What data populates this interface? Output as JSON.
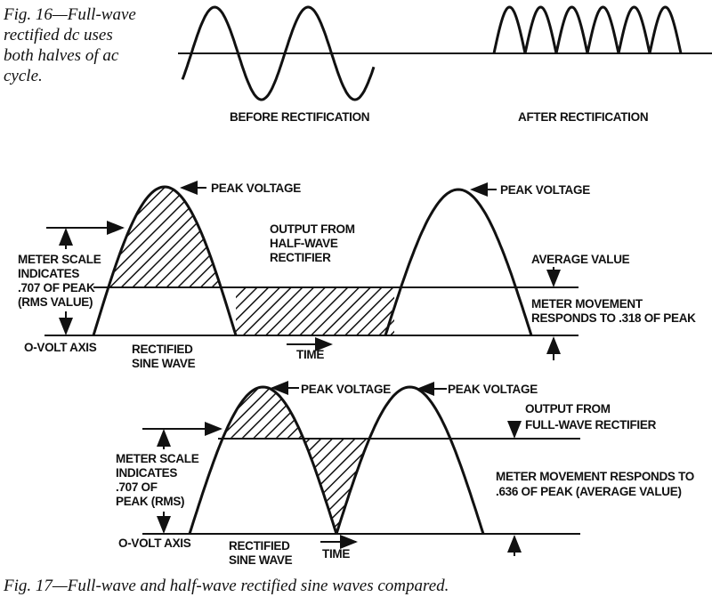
{
  "fig16": {
    "caption": [
      "Fig. 16—Full-wave",
      "rectified dc uses",
      "both halves of ac",
      "cycle."
    ],
    "before_label": "BEFORE RECTIFICATION",
    "after_label": "AFTER RECTIFICATION"
  },
  "half_wave": {
    "peak_label_1": "PEAK VOLTAGE",
    "peak_label_2": "PEAK VOLTAGE",
    "output_label": [
      "OUTPUT FROM",
      "HALF-WAVE",
      "RECTIFIER"
    ],
    "average_label": "AVERAGE VALUE",
    "meter_scale_label": [
      "METER SCALE",
      "INDICATES",
      ".707 OF PEAK",
      "(RMS VALUE)"
    ],
    "meter_movement_label": [
      "METER MOVEMENT",
      "RESPONDS TO .318 OF PEAK"
    ],
    "axis_label": "O-VOLT AXIS",
    "wave_label": [
      "RECTIFIED",
      "SINE WAVE"
    ],
    "time_label": "TIME"
  },
  "full_wave": {
    "peak_label_1": "PEAK VOLTAGE",
    "peak_label_2": "PEAK VOLTAGE",
    "output_label": [
      "OUTPUT FROM",
      "FULL-WAVE RECTIFIER"
    ],
    "meter_scale_label": [
      "METER SCALE",
      "INDICATES",
      ".707 OF",
      "PEAK (RMS)"
    ],
    "meter_movement_label": [
      "METER MOVEMENT RESPONDS TO",
      ".636 OF PEAK (AVERAGE VALUE)"
    ],
    "axis_label": "O-VOLT AXIS",
    "wave_label": [
      "RECTIFIED",
      "SINE WAVE"
    ],
    "time_label": "TIME"
  },
  "fig17": {
    "caption": "Fig. 17—Full-wave and half-wave rectified  sine  waves  compared."
  }
}
